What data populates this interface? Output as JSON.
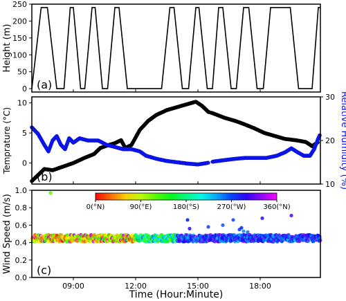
{
  "chart_data": [
    {
      "panel": "(a)",
      "type": "line",
      "ylabel": "Height (m)",
      "ylim": [
        -10,
        250
      ],
      "yticks": [
        0,
        50,
        100,
        150,
        200,
        250
      ],
      "xlim": [
        7.0,
        20.9
      ],
      "series": [
        {
          "name": "Height",
          "color": "#000000",
          "points": [
            [
              7.0,
              0
            ],
            [
              7.45,
              240
            ],
            [
              7.75,
              240
            ],
            [
              8.2,
              0
            ],
            [
              8.55,
              0
            ],
            [
              8.85,
              240
            ],
            [
              9.0,
              240
            ],
            [
              9.35,
              0
            ],
            [
              9.55,
              0
            ],
            [
              9.9,
              240
            ],
            [
              10.05,
              240
            ],
            [
              10.4,
              0
            ],
            [
              10.65,
              0
            ],
            [
              11.0,
              240
            ],
            [
              11.2,
              240
            ],
            [
              11.6,
              0
            ],
            [
              13.25,
              0
            ],
            [
              13.65,
              240
            ],
            [
              13.85,
              240
            ],
            [
              14.25,
              0
            ],
            [
              14.55,
              0
            ],
            [
              14.9,
              240
            ],
            [
              15.05,
              240
            ],
            [
              15.45,
              0
            ],
            [
              15.7,
              0
            ],
            [
              16.0,
              240
            ],
            [
              16.2,
              240
            ],
            [
              16.6,
              0
            ],
            [
              16.85,
              0
            ],
            [
              17.2,
              240
            ],
            [
              17.45,
              240
            ],
            [
              17.85,
              0
            ],
            [
              18.15,
              0
            ],
            [
              18.5,
              240
            ],
            [
              19.45,
              240
            ],
            [
              19.85,
              0
            ],
            [
              20.5,
              0
            ],
            [
              20.8,
              240
            ],
            [
              20.9,
              240
            ]
          ]
        }
      ]
    },
    {
      "panel": "(b)",
      "type": "scatter",
      "ylabel": "Temprature (°C)",
      "y2label": "Relative Humidity (%)",
      "ylim": [
        -3.5,
        11
      ],
      "yticks": [
        -5,
        0,
        5,
        10
      ],
      "y2lim": [
        10,
        30
      ],
      "y2ticks": [
        10,
        20,
        30
      ],
      "xlim": [
        7.0,
        20.9
      ],
      "series": [
        {
          "name": "Temprature",
          "color": "#000000",
          "axis": "left",
          "points": [
            [
              7.0,
              -3.0
            ],
            [
              7.3,
              -2.0
            ],
            [
              7.6,
              -1.0
            ],
            [
              8.0,
              -1.2
            ],
            [
              8.5,
              -0.6
            ],
            [
              9.0,
              0.0
            ],
            [
              9.5,
              0.8
            ],
            [
              10.0,
              1.5
            ],
            [
              10.3,
              2.5
            ],
            [
              10.7,
              3.0
            ],
            [
              11.0,
              3.3
            ],
            [
              11.3,
              3.8
            ],
            [
              11.5,
              2.5
            ],
            [
              11.8,
              3.0
            ],
            [
              12.2,
              5.5
            ],
            [
              12.6,
              7.0
            ],
            [
              13.0,
              8.0
            ],
            [
              13.5,
              8.8
            ],
            [
              14.0,
              9.3
            ],
            [
              14.5,
              9.8
            ],
            [
              14.9,
              10.2
            ],
            [
              15.2,
              9.5
            ],
            [
              15.5,
              8.5
            ],
            [
              15.7,
              8.3
            ],
            [
              16.3,
              7.5
            ],
            [
              16.8,
              7.0
            ],
            [
              17.2,
              6.5
            ],
            [
              17.7,
              5.8
            ],
            [
              18.2,
              5.0
            ],
            [
              18.7,
              4.5
            ],
            [
              19.2,
              4.0
            ],
            [
              19.7,
              3.8
            ],
            [
              20.2,
              3.5
            ],
            [
              20.5,
              2.8
            ],
            [
              20.8,
              3.5
            ]
          ]
        },
        {
          "name": "Relative Humidity",
          "color": "#0a14e6",
          "axis": "right",
          "points": [
            [
              7.0,
              23.0
            ],
            [
              7.3,
              21.5
            ],
            [
              7.6,
              19.0
            ],
            [
              7.8,
              17.5
            ],
            [
              8.0,
              20.0
            ],
            [
              8.2,
              21.0
            ],
            [
              8.4,
              19.0
            ],
            [
              8.6,
              18.0
            ],
            [
              8.8,
              20.5
            ],
            [
              9.0,
              19.5
            ],
            [
              9.3,
              20.5
            ],
            [
              9.7,
              20.0
            ],
            [
              10.2,
              20.0
            ],
            [
              10.6,
              19.0
            ],
            [
              11.0,
              18.5
            ],
            [
              11.4,
              18.0
            ],
            [
              11.8,
              18.0
            ],
            [
              12.2,
              17.5
            ],
            [
              12.5,
              16.5
            ],
            [
              13.0,
              15.8
            ],
            [
              13.5,
              15.3
            ],
            [
              14.0,
              15.0
            ],
            [
              14.5,
              14.7
            ],
            [
              15.0,
              14.5
            ],
            [
              15.4,
              14.8
            ],
            [
              15.8,
              15.2
            ],
            [
              16.3,
              15.5
            ],
            [
              16.8,
              15.8
            ],
            [
              17.3,
              16.0
            ],
            [
              17.8,
              16.0
            ],
            [
              18.3,
              16.0
            ],
            [
              18.8,
              16.5
            ],
            [
              19.2,
              17.3
            ],
            [
              19.5,
              18.2
            ],
            [
              19.8,
              17.3
            ],
            [
              20.1,
              16.5
            ],
            [
              20.4,
              16.5
            ],
            [
              20.6,
              18.0
            ],
            [
              20.8,
              20.5
            ],
            [
              20.9,
              21.5
            ]
          ]
        }
      ]
    },
    {
      "panel": "(c)",
      "type": "scatter",
      "ylabel": "Wind Speed (m/s)",
      "xlabel": "Time (Hour:Minute)",
      "ylim": [
        0.0,
        1.0
      ],
      "yticks": [
        0.0,
        0.2,
        0.4,
        0.6,
        0.8,
        1.0
      ],
      "xlim": [
        7.0,
        20.9
      ],
      "xticks": [
        9,
        12,
        15,
        18
      ],
      "xticklabels": [
        "09:00",
        "12:00",
        "15:00",
        "18:00"
      ],
      "colorbar": {
        "ticklabels": [
          "0(°N)",
          "90(°E)",
          "180(°S)",
          "270(°W)",
          "360(°N)"
        ],
        "range": [
          0,
          360
        ]
      },
      "baseline_band": [
        0.41,
        0.49
      ],
      "outliers": [
        {
          "x": 7.9,
          "y": 0.97,
          "dir": 120
        },
        {
          "x": 14.5,
          "y": 0.66,
          "dir": 285
        },
        {
          "x": 14.6,
          "y": 0.56,
          "dir": 300
        },
        {
          "x": 15.5,
          "y": 0.58,
          "dir": 270
        },
        {
          "x": 16.2,
          "y": 0.6,
          "dir": 265
        },
        {
          "x": 16.7,
          "y": 0.66,
          "dir": 270
        },
        {
          "x": 17.0,
          "y": 0.55,
          "dir": 275
        },
        {
          "x": 17.1,
          "y": 0.57,
          "dir": 280
        },
        {
          "x": 17.2,
          "y": 0.53,
          "dir": 250
        },
        {
          "x": 17.4,
          "y": 0.52,
          "dir": 260
        },
        {
          "x": 18.1,
          "y": 0.68,
          "dir": 300
        },
        {
          "x": 19.5,
          "y": 0.71,
          "dir": 310
        }
      ]
    }
  ]
}
